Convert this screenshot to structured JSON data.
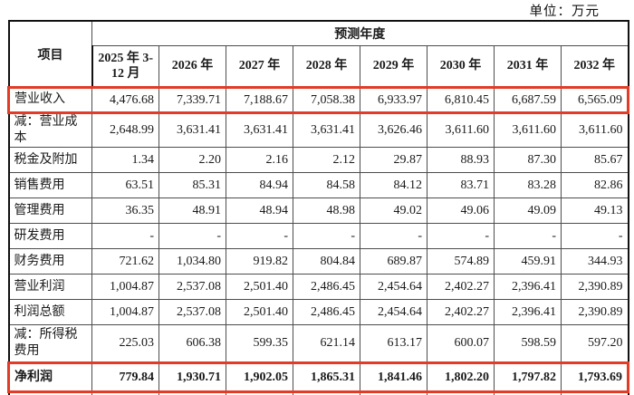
{
  "meta": {
    "unit_label": "单位：万元",
    "highlight_color": "#e23b26"
  },
  "table": {
    "corner_header": "项目",
    "group_header": "预测年度",
    "columns": [
      "2025 年 3-12 月",
      "2026 年",
      "2027 年",
      "2028 年",
      "2029 年",
      "2030 年",
      "2031 年",
      "2032 年"
    ],
    "rows": [
      {
        "label": "营业收入",
        "highlight": true,
        "bold": false,
        "tall": false,
        "values": [
          "4,476.68",
          "7,339.71",
          "7,188.67",
          "7,058.38",
          "6,933.97",
          "6,810.45",
          "6,687.59",
          "6,565.09"
        ]
      },
      {
        "label": "减：营业成本",
        "highlight": false,
        "bold": false,
        "tall": false,
        "values": [
          "2,648.99",
          "3,631.41",
          "3,631.41",
          "3,631.41",
          "3,626.46",
          "3,611.60",
          "3,611.60",
          "3,611.60"
        ]
      },
      {
        "label": "税金及附加",
        "highlight": false,
        "bold": false,
        "tall": false,
        "values": [
          "1.34",
          "2.20",
          "2.16",
          "2.12",
          "29.87",
          "88.93",
          "87.30",
          "85.67"
        ]
      },
      {
        "label": "销售费用",
        "highlight": false,
        "bold": false,
        "tall": false,
        "values": [
          "63.51",
          "85.31",
          "84.94",
          "84.58",
          "84.12",
          "83.71",
          "83.28",
          "82.86"
        ]
      },
      {
        "label": "管理费用",
        "highlight": false,
        "bold": false,
        "tall": false,
        "values": [
          "36.35",
          "48.91",
          "48.94",
          "48.98",
          "49.02",
          "49.06",
          "49.09",
          "49.13"
        ]
      },
      {
        "label": "研发费用",
        "highlight": false,
        "bold": false,
        "tall": false,
        "values": [
          "-",
          "-",
          "-",
          "-",
          "-",
          "-",
          "-",
          "-"
        ]
      },
      {
        "label": "财务费用",
        "highlight": false,
        "bold": false,
        "tall": false,
        "values": [
          "721.62",
          "1,034.80",
          "919.82",
          "804.84",
          "689.87",
          "574.89",
          "459.91",
          "344.93"
        ]
      },
      {
        "label": "营业利润",
        "highlight": false,
        "bold": false,
        "tall": false,
        "values": [
          "1,004.87",
          "2,537.08",
          "2,501.40",
          "2,486.45",
          "2,454.64",
          "2,402.27",
          "2,396.41",
          "2,390.89"
        ]
      },
      {
        "label": "利润总额",
        "highlight": false,
        "bold": false,
        "tall": false,
        "values": [
          "1,004.87",
          "2,537.08",
          "2,501.40",
          "2,486.45",
          "2,454.64",
          "2,402.27",
          "2,396.41",
          "2,390.89"
        ]
      },
      {
        "label": "减：所得税费用",
        "highlight": false,
        "bold": false,
        "tall": true,
        "values": [
          "225.03",
          "606.38",
          "599.35",
          "621.14",
          "613.17",
          "600.07",
          "598.59",
          "597.20"
        ]
      },
      {
        "label": "净利润",
        "highlight": true,
        "bold": true,
        "tall": false,
        "last": true,
        "values": [
          "779.84",
          "1,930.71",
          "1,902.05",
          "1,865.31",
          "1,841.46",
          "1,802.20",
          "1,797.82",
          "1,793.69"
        ]
      },
      {
        "label": "",
        "highlight": false,
        "bold": false,
        "tall": false,
        "sliver": true,
        "values": [
          "",
          "",
          "",
          "",
          "",
          "",
          "",
          ""
        ]
      }
    ]
  }
}
